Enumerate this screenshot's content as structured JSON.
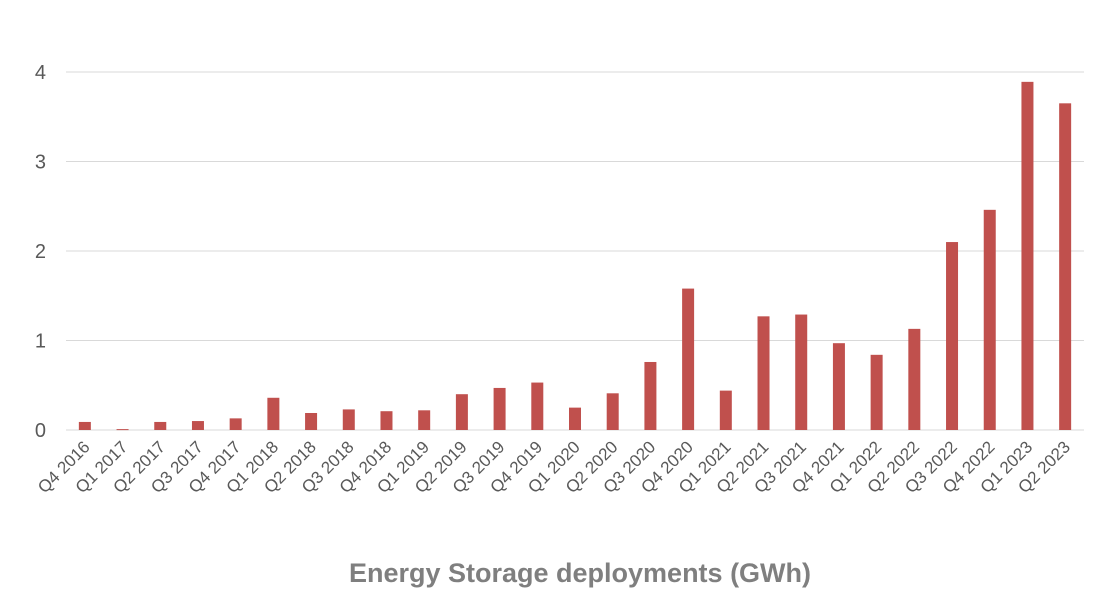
{
  "chart_data": {
    "type": "bar",
    "title": "Energy Storage deployments (GWh)",
    "xlabel": "",
    "ylabel": "",
    "ylim": [
      0,
      4
    ],
    "yticks": [
      0,
      1,
      2,
      3,
      4
    ],
    "grid": true,
    "bar_color": "#c0504d",
    "categories": [
      "Q4 2016",
      "Q1 2017",
      "Q2 2017",
      "Q3 2017",
      "Q4 2017",
      "Q1 2018",
      "Q2 2018",
      "Q3 2018",
      "Q4 2018",
      "Q1 2019",
      "Q2 2019",
      "Q3 2019",
      "Q4 2019",
      "Q1 2020",
      "Q2 2020",
      "Q3 2020",
      "Q4 2020",
      "Q1 2021",
      "Q2 2021",
      "Q3 2021",
      "Q4 2021",
      "Q1 2022",
      "Q2 2022",
      "Q3 2022",
      "Q4 2022",
      "Q1 2023",
      "Q2 2023"
    ],
    "values": [
      0.09,
      0.01,
      0.09,
      0.1,
      0.13,
      0.36,
      0.19,
      0.23,
      0.21,
      0.22,
      0.4,
      0.47,
      0.53,
      0.25,
      0.41,
      0.76,
      1.58,
      0.44,
      1.27,
      1.29,
      0.97,
      0.84,
      1.13,
      2.1,
      2.46,
      3.89,
      3.65
    ]
  }
}
